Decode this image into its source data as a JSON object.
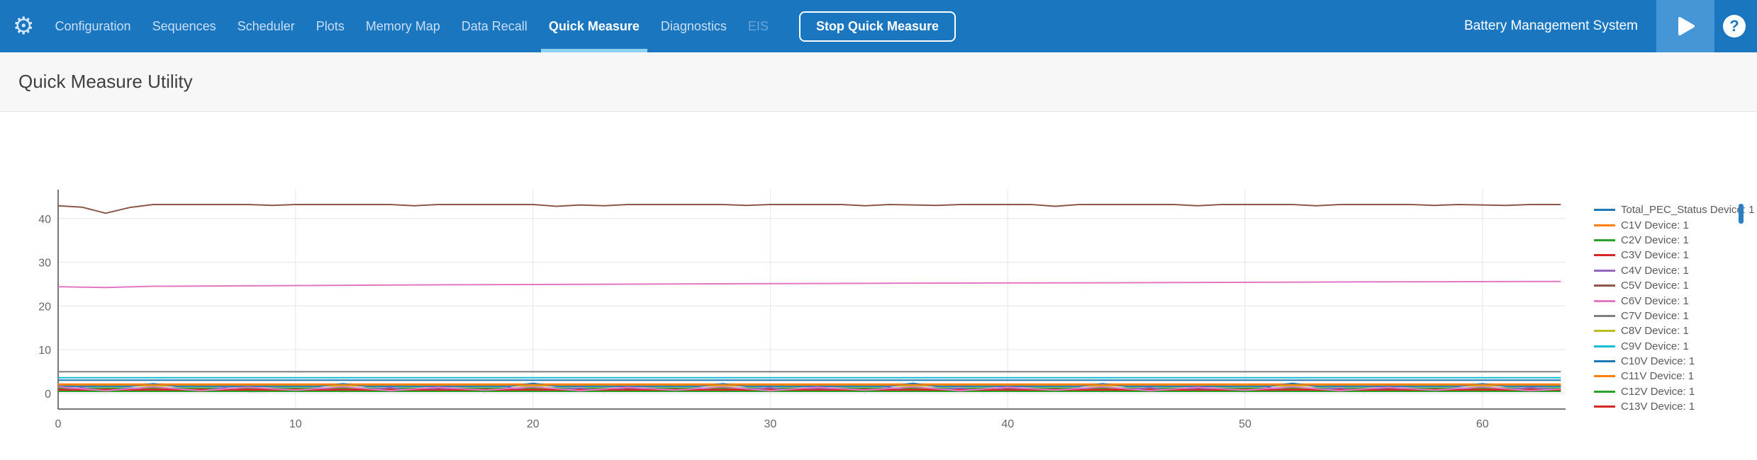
{
  "colors": {
    "topbar_bg": "#1b76c0",
    "topbar_active_underline": "#8ed1f2",
    "play_button_bg": "#4596d6",
    "header_bg": "#f7f7f7",
    "header_border": "#e2e2e2",
    "title_text": "#3f3f3f",
    "axis_text": "#666666",
    "grid_line": "#e6e6e6",
    "spine": "#4a4a4a",
    "legend_text": "#5a5a5a",
    "scrollbar_thumb": "#2e7fc2"
  },
  "topbar": {
    "nav": [
      {
        "label": "Configuration"
      },
      {
        "label": "Sequences"
      },
      {
        "label": "Scheduler"
      },
      {
        "label": "Plots"
      },
      {
        "label": "Memory Map"
      },
      {
        "label": "Data Recall"
      },
      {
        "label": "Quick Measure",
        "active": true
      },
      {
        "label": "Diagnostics"
      },
      {
        "label": "EIS",
        "disabled": true
      }
    ],
    "stop_button_label": "Stop Quick Measure",
    "app_title": "Battery Management System",
    "help_label": "?"
  },
  "header": {
    "title": "Quick Measure Utility"
  },
  "legend": {
    "items": [
      {
        "label": "Total_PEC_Status Device: 1",
        "color": "#1f77b4"
      },
      {
        "label": "C1V Device: 1",
        "color": "#ff7f0e"
      },
      {
        "label": "C2V Device: 1",
        "color": "#2ca02c"
      },
      {
        "label": "C3V Device: 1",
        "color": "#d62728"
      },
      {
        "label": "C4V Device: 1",
        "color": "#9467bd"
      },
      {
        "label": "C5V Device: 1",
        "color": "#8c564b"
      },
      {
        "label": "C6V Device: 1",
        "color": "#e377c2"
      },
      {
        "label": "C7V Device: 1",
        "color": "#7f7f7f"
      },
      {
        "label": "C8V Device: 1",
        "color": "#bcbd22"
      },
      {
        "label": "C9V Device: 1",
        "color": "#17becf"
      },
      {
        "label": "C10V Device: 1",
        "color": "#1f77b4"
      },
      {
        "label": "C11V Device: 1",
        "color": "#ff7f0e"
      },
      {
        "label": "C12V Device: 1",
        "color": "#2ca02c"
      },
      {
        "label": "C13V Device: 1",
        "color": "#d62728"
      }
    ]
  },
  "chart_data": {
    "type": "line",
    "title": "",
    "xlabel": "",
    "ylabel": "",
    "xlim": [
      0,
      63.5
    ],
    "ylim": [
      -3.6,
      46.6
    ],
    "xticks": [
      0,
      10,
      20,
      30,
      40,
      50,
      60
    ],
    "yticks": [
      0,
      10,
      20,
      30,
      40
    ],
    "grid": true,
    "legend_position": "right",
    "series": [
      {
        "name": "Total_PEC_Status Device: 1",
        "color": "#1f77b4",
        "points": [
          [
            0,
            3.0
          ],
          [
            63.3,
            3.0
          ]
        ]
      },
      {
        "name": "C1V Device: 1",
        "color": "#ff7f0e",
        "points": [
          [
            0,
            2.1
          ],
          [
            63.3,
            2.1
          ]
        ]
      },
      {
        "name": "C2V Device: 1",
        "color": "#2ca02c",
        "points": [
          [
            0,
            1.2
          ],
          [
            63.3,
            1.2
          ]
        ]
      },
      {
        "name": "C3V Device: 1",
        "color": "#d62728",
        "points": [
          [
            0,
            0.9
          ],
          [
            63.3,
            0.9
          ]
        ]
      },
      {
        "name": "C4V Device: 1",
        "color": "#9467bd",
        "points": [
          [
            0,
            0.6
          ],
          [
            1,
            1.3
          ],
          [
            2,
            0.4
          ],
          [
            3,
            1.2
          ],
          [
            4,
            0.5
          ],
          [
            6,
            0.5
          ],
          [
            7,
            1.3
          ],
          [
            8,
            0.4
          ],
          [
            10,
            0.5
          ],
          [
            11,
            1.2
          ],
          [
            12,
            0.4
          ],
          [
            14,
            1.3
          ],
          [
            15,
            0.5
          ],
          [
            16,
            1.2
          ],
          [
            18,
            0.4
          ],
          [
            19,
            1.3
          ],
          [
            20,
            0.5
          ],
          [
            22,
            1.2
          ],
          [
            23,
            0.4
          ],
          [
            24,
            1.3
          ],
          [
            26,
            0.5
          ],
          [
            27,
            1.2
          ],
          [
            28,
            0.4
          ],
          [
            30,
            1.3
          ],
          [
            31,
            0.5
          ],
          [
            32,
            1.2
          ],
          [
            34,
            0.4
          ],
          [
            35,
            1.3
          ],
          [
            36,
            0.5
          ],
          [
            38,
            1.2
          ],
          [
            39,
            0.4
          ],
          [
            40,
            1.3
          ],
          [
            42,
            0.5
          ],
          [
            43,
            1.2
          ],
          [
            44,
            0.4
          ],
          [
            46,
            1.3
          ],
          [
            47,
            0.5
          ],
          [
            48,
            1.2
          ],
          [
            50,
            0.4
          ],
          [
            51,
            1.3
          ],
          [
            52,
            0.5
          ],
          [
            54,
            1.2
          ],
          [
            55,
            0.4
          ],
          [
            56,
            1.3
          ],
          [
            58,
            0.5
          ],
          [
            59,
            1.2
          ],
          [
            60,
            0.4
          ],
          [
            62,
            1.3
          ],
          [
            63.3,
            0.8
          ]
        ]
      },
      {
        "name": "C5V Device: 1",
        "color": "#8c564b",
        "points": [
          [
            0,
            42.9
          ],
          [
            1,
            42.6
          ],
          [
            2,
            41.2
          ],
          [
            3,
            42.5
          ],
          [
            4,
            43.2
          ],
          [
            8,
            43.2
          ],
          [
            9,
            43.0
          ],
          [
            10,
            43.2
          ],
          [
            14,
            43.2
          ],
          [
            15,
            42.9
          ],
          [
            16,
            43.2
          ],
          [
            20,
            43.2
          ],
          [
            21,
            42.8
          ],
          [
            22,
            43.1
          ],
          [
            23,
            42.9
          ],
          [
            24,
            43.2
          ],
          [
            28,
            43.2
          ],
          [
            29,
            43.0
          ],
          [
            30,
            43.2
          ],
          [
            33,
            43.2
          ],
          [
            34,
            42.9
          ],
          [
            35,
            43.2
          ],
          [
            37,
            43.0
          ],
          [
            38,
            43.2
          ],
          [
            41,
            43.2
          ],
          [
            42,
            42.8
          ],
          [
            43,
            43.2
          ],
          [
            47,
            43.2
          ],
          [
            48,
            42.9
          ],
          [
            49,
            43.2
          ],
          [
            52,
            43.2
          ],
          [
            53,
            42.9
          ],
          [
            54,
            43.2
          ],
          [
            57,
            43.2
          ],
          [
            58,
            43.0
          ],
          [
            59,
            43.2
          ],
          [
            61,
            43.0
          ],
          [
            62,
            43.2
          ],
          [
            63.3,
            43.2
          ]
        ]
      },
      {
        "name": "C6V Device: 1",
        "color": "#e377c2",
        "points": [
          [
            0,
            24.4
          ],
          [
            1,
            24.3
          ],
          [
            2,
            24.2
          ],
          [
            4,
            24.5
          ],
          [
            8,
            24.6
          ],
          [
            15,
            24.8
          ],
          [
            25,
            25.0
          ],
          [
            35,
            25.2
          ],
          [
            45,
            25.3
          ],
          [
            55,
            25.5
          ],
          [
            63.3,
            25.6
          ]
        ]
      },
      {
        "name": "C7V Device: 1",
        "color": "#7f7f7f",
        "points": [
          [
            0,
            4.95
          ],
          [
            63.3,
            4.95
          ]
        ]
      },
      {
        "name": "C8V Device: 1",
        "color": "#bcbd22",
        "points": [
          [
            0,
            1.7
          ],
          [
            63.3,
            1.7
          ]
        ]
      },
      {
        "name": "C9V Device: 1",
        "color": "#17becf",
        "points": [
          [
            0,
            3.55
          ],
          [
            63.3,
            3.55
          ]
        ]
      },
      {
        "name": "C10V Device: 1",
        "color": "#1f77b4",
        "points": [
          [
            0,
            1.6
          ],
          [
            3,
            1.6
          ],
          [
            4,
            2.2
          ],
          [
            5,
            1.6
          ],
          [
            11,
            1.6
          ],
          [
            12,
            2.2
          ],
          [
            13,
            1.6
          ],
          [
            19,
            1.6
          ],
          [
            20,
            2.3
          ],
          [
            21,
            1.6
          ],
          [
            27,
            1.6
          ],
          [
            28,
            2.2
          ],
          [
            29,
            1.6
          ],
          [
            35,
            1.6
          ],
          [
            36,
            2.3
          ],
          [
            37,
            1.6
          ],
          [
            43,
            1.6
          ],
          [
            44,
            2.2
          ],
          [
            45,
            1.6
          ],
          [
            51,
            1.6
          ],
          [
            52,
            2.3
          ],
          [
            53,
            1.6
          ],
          [
            59,
            1.6
          ],
          [
            60,
            2.2
          ],
          [
            61,
            1.6
          ],
          [
            63.3,
            1.6
          ]
        ]
      },
      {
        "name": "C11V Device: 1",
        "color": "#ff7f0e",
        "points": [
          [
            0,
            1.95
          ],
          [
            63.3,
            1.95
          ]
        ]
      },
      {
        "name": "C12V Device: 1",
        "color": "#2ca02c",
        "points": [
          [
            0,
            0.45
          ],
          [
            63.3,
            0.45
          ]
        ]
      },
      {
        "name": "C13V Device: 1",
        "color": "#d62728",
        "points": [
          [
            0,
            0.78
          ],
          [
            63.3,
            0.78
          ]
        ]
      },
      {
        "name": "",
        "color": "#e377c2",
        "points": [
          [
            0,
            1.5
          ],
          [
            2,
            0.6
          ],
          [
            4,
            1.5
          ],
          [
            6,
            0.6
          ],
          [
            8,
            1.4
          ],
          [
            10,
            0.7
          ],
          [
            12,
            1.5
          ],
          [
            14,
            0.6
          ],
          [
            16,
            1.4
          ],
          [
            18,
            0.7
          ],
          [
            20,
            1.5
          ],
          [
            22,
            0.6
          ],
          [
            24,
            1.4
          ],
          [
            26,
            0.7
          ],
          [
            28,
            1.5
          ],
          [
            30,
            0.6
          ],
          [
            32,
            1.4
          ],
          [
            34,
            0.7
          ],
          [
            36,
            1.5
          ],
          [
            38,
            0.6
          ],
          [
            40,
            1.4
          ],
          [
            42,
            0.7
          ],
          [
            44,
            1.5
          ],
          [
            46,
            0.6
          ],
          [
            48,
            1.4
          ],
          [
            50,
            0.7
          ],
          [
            52,
            1.5
          ],
          [
            54,
            0.6
          ],
          [
            56,
            1.4
          ],
          [
            58,
            0.7
          ],
          [
            60,
            1.5
          ],
          [
            62,
            0.6
          ],
          [
            63.3,
            1.0
          ]
        ]
      }
    ]
  }
}
